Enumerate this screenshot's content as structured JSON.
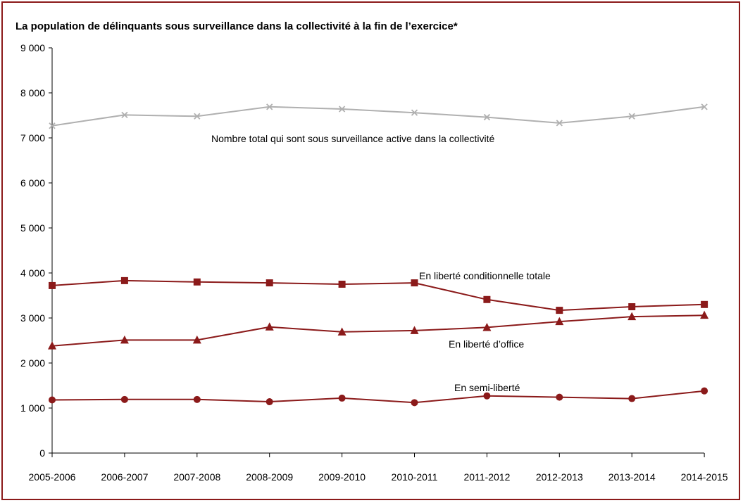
{
  "chart_data": {
    "type": "line",
    "title": "La population de délinquants sous surveillance dans la collectivité  à la fin de l’exercice*",
    "xlabel": "",
    "ylabel": "",
    "ylim": [
      0,
      9000
    ],
    "yticks": [
      0,
      1000,
      2000,
      3000,
      4000,
      5000,
      6000,
      7000,
      8000,
      9000
    ],
    "ytick_labels": [
      "0",
      "1 000",
      "2 000",
      "3 000",
      "4 000",
      "5 000",
      "6 000",
      "7 000",
      "8 000",
      "9 000"
    ],
    "categories": [
      "2005-2006",
      "2006-2007",
      "2007-2008",
      "2008-2009",
      "2009-2010",
      "2010-2011",
      "2011-2012",
      "2012-2013",
      "2013-2014",
      "2014-2015"
    ],
    "grid": false,
    "series": [
      {
        "name": "Nombre total qui sont sous surveillance active dans la collectivité",
        "values": [
          7270,
          7510,
          7480,
          7690,
          7640,
          7560,
          7460,
          7330,
          7480,
          7690
        ],
        "color": "#b0b0b0",
        "marker": "x"
      },
      {
        "name": "En liberté conditionnelle totale",
        "values": [
          3720,
          3830,
          3800,
          3780,
          3750,
          3780,
          3410,
          3170,
          3250,
          3300
        ],
        "color": "#8b1a1a",
        "marker": "square"
      },
      {
        "name": "En liberté d’office",
        "values": [
          2380,
          2510,
          2510,
          2800,
          2690,
          2720,
          2790,
          2920,
          3030,
          3060
        ],
        "color": "#8b1a1a",
        "marker": "triangle"
      },
      {
        "name": "En semi-liberté",
        "values": [
          1180,
          1190,
          1190,
          1140,
          1220,
          1120,
          1270,
          1240,
          1210,
          1380
        ],
        "color": "#8b1a1a",
        "marker": "circle"
      }
    ]
  }
}
